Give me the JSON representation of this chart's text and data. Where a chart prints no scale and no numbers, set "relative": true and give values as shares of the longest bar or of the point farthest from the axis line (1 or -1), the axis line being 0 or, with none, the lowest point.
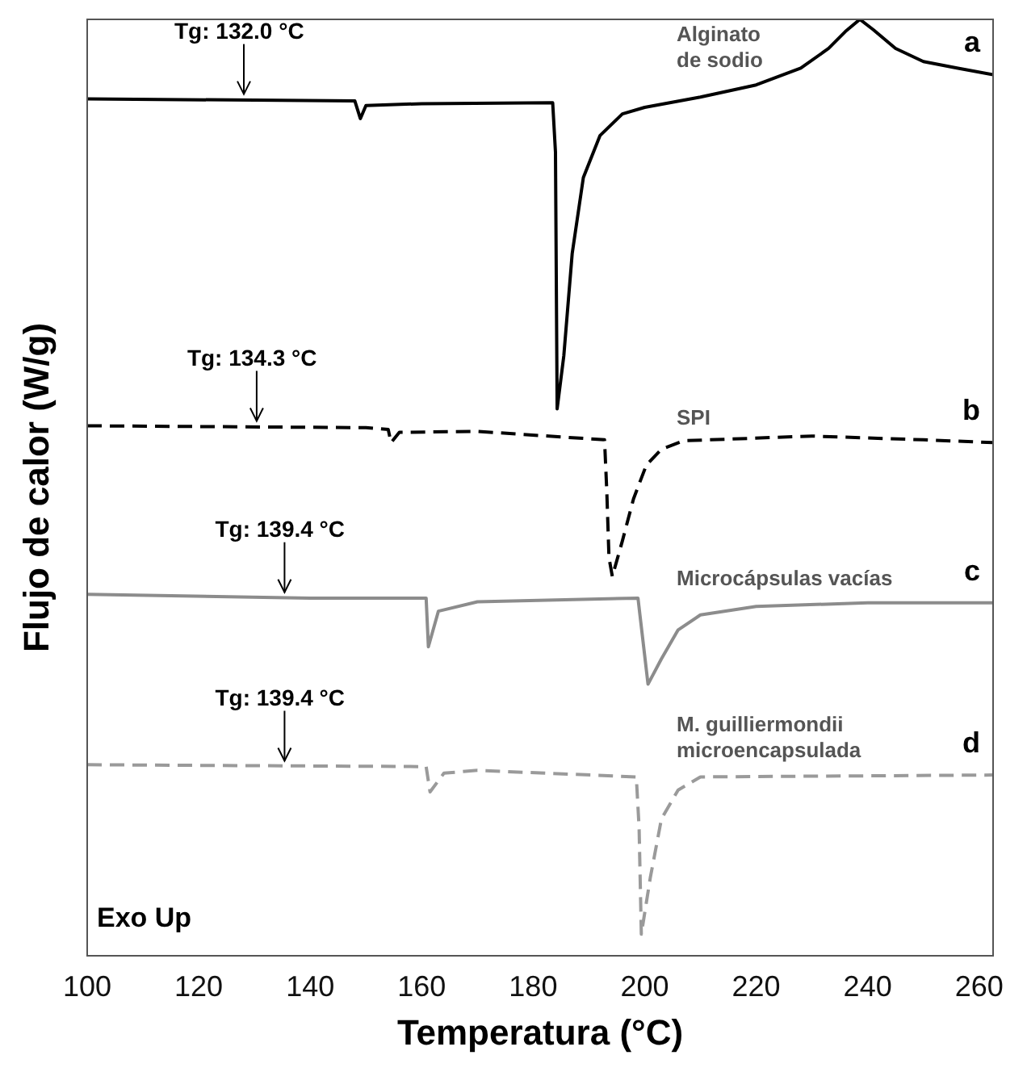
{
  "chart_data": {
    "type": "line",
    "relative": true,
    "xlabel": "Temperatura (°C)",
    "ylabel": "Flujo de calor (W/g)",
    "xlim": [
      100,
      262.5
    ],
    "xticks": [
      100,
      120,
      140,
      160,
      180,
      200,
      220,
      240,
      260
    ],
    "grid": false,
    "legend": false,
    "marker": "none",
    "series": [
      {
        "name": "Alginato de sodio",
        "color": "#000000",
        "line_style": "solid",
        "x": [
          100,
          148,
          149,
          150,
          160,
          183.5,
          184,
          184.3,
          185.5,
          187,
          189,
          192,
          196,
          200,
          210,
          220,
          228,
          233,
          236,
          238.6,
          241,
          245,
          250,
          256,
          262.5
        ],
        "values": [
          0.915,
          0.913,
          0.894,
          0.908,
          0.91,
          0.911,
          0.858,
          0.584,
          0.641,
          0.75,
          0.831,
          0.876,
          0.899,
          0.906,
          0.917,
          0.93,
          0.948,
          0.969,
          0.987,
          1,
          0.989,
          0.969,
          0.955,
          0.948,
          0.941
        ]
      },
      {
        "name": "SPI",
        "color": "#000000",
        "line_style": "dashed",
        "x": [
          100,
          150,
          154,
          154.5,
          156,
          170,
          192.8,
          193.2,
          193.6,
          194.2,
          196,
          198,
          200.3,
          203,
          207,
          230,
          250,
          262.5
        ],
        "values": [
          0.566,
          0.564,
          0.562,
          0.548,
          0.559,
          0.56,
          0.551,
          0.497,
          0.425,
          0.405,
          0.443,
          0.488,
          0.524,
          0.541,
          0.55,
          0.555,
          0.551,
          0.548
        ]
      },
      {
        "name": "Microcápsulas vacías",
        "color": "#8c8c8c",
        "line_style": "solid",
        "x": [
          100,
          140,
          160.8,
          161.2,
          163,
          170,
          198.8,
          200.6,
          203,
          206,
          210,
          220,
          240,
          262.5
        ],
        "values": [
          0.386,
          0.382,
          0.382,
          0.33,
          0.368,
          0.378,
          0.382,
          0.29,
          0.317,
          0.348,
          0.364,
          0.373,
          0.377,
          0.377
        ]
      },
      {
        "name": "M. guilliermondii microencapsulada",
        "color": "#9a9a9a",
        "line_style": "dashed",
        "x": [
          100,
          160.8,
          161.5,
          164,
          170,
          198.5,
          199,
          199.4,
          201,
          203,
          206,
          210,
          262.5
        ],
        "values": [
          0.204,
          0.202,
          0.175,
          0.195,
          0.198,
          0.191,
          0.137,
          0.023,
          0.083,
          0.146,
          0.177,
          0.191,
          0.193
        ]
      }
    ],
    "annotations": [
      {
        "text": "Tg: 132.0 °C",
        "x": 128.1,
        "y": 0.915
      },
      {
        "text": "Tg: 134.3 °C",
        "x": 130.4,
        "y": 0.566
      },
      {
        "text": "Tg: 139.4 °C",
        "x": 135.4,
        "y": 0.383
      },
      {
        "text": "Tg: 139.4 °C",
        "x": 135.4,
        "y": 0.203
      },
      "a",
      "b",
      "c",
      "d",
      "Exo Up"
    ]
  }
}
